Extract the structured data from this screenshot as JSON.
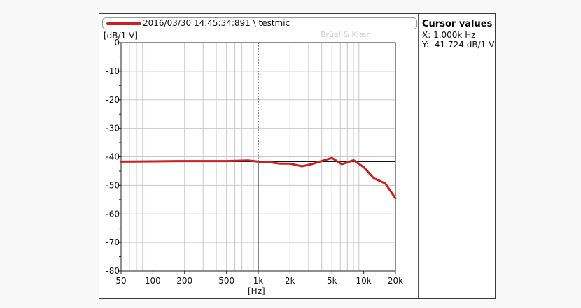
{
  "legend": {
    "label": "2016/03/30 14:45:34:891 \\ testmic",
    "color": "#cc1f1f"
  },
  "watermark": "Brüel & Kjær",
  "cursor": {
    "title": "Cursor values",
    "x": "X: 1.000k Hz",
    "y": "Y: -41.724 dB/1 V"
  },
  "chart_data": {
    "type": "line",
    "xscale": "log",
    "xlabel": "[Hz]",
    "ylabel": "[dB/1 V]",
    "xlim": [
      50,
      20000
    ],
    "ylim": [
      -80,
      0
    ],
    "grid": true,
    "x_ticks": [
      50,
      100,
      200,
      500,
      1000,
      2000,
      5000,
      10000,
      20000
    ],
    "x_tick_labels": [
      "50",
      "100",
      "200",
      "500",
      "1k",
      "2k",
      "5k",
      "10k",
      "20k"
    ],
    "y_ticks": [
      0,
      -10,
      -20,
      -30,
      -40,
      -50,
      -60,
      -70,
      -80
    ],
    "y_tick_labels": [
      "0",
      "-10",
      "-20",
      "-30",
      "-40",
      "-50",
      "-60",
      "-70",
      "-80"
    ],
    "cursor_x": 1000,
    "cursor_y": -41.724,
    "series": [
      {
        "color": "#cc1f1f",
        "x": [
          50,
          100,
          200,
          300,
          500,
          800,
          1000,
          1300,
          1600,
          2000,
          2600,
          3200,
          4000,
          5000,
          6200,
          8000,
          10000,
          12500,
          16000,
          20000
        ],
        "y": [
          -41.7,
          -41.6,
          -41.5,
          -41.5,
          -41.5,
          -41.3,
          -41.7,
          -41.9,
          -42.4,
          -42.4,
          -43.3,
          -42.6,
          -41.5,
          -40.4,
          -42.6,
          -41.2,
          -43.6,
          -47.5,
          -49.3,
          -54.5
        ]
      }
    ]
  }
}
